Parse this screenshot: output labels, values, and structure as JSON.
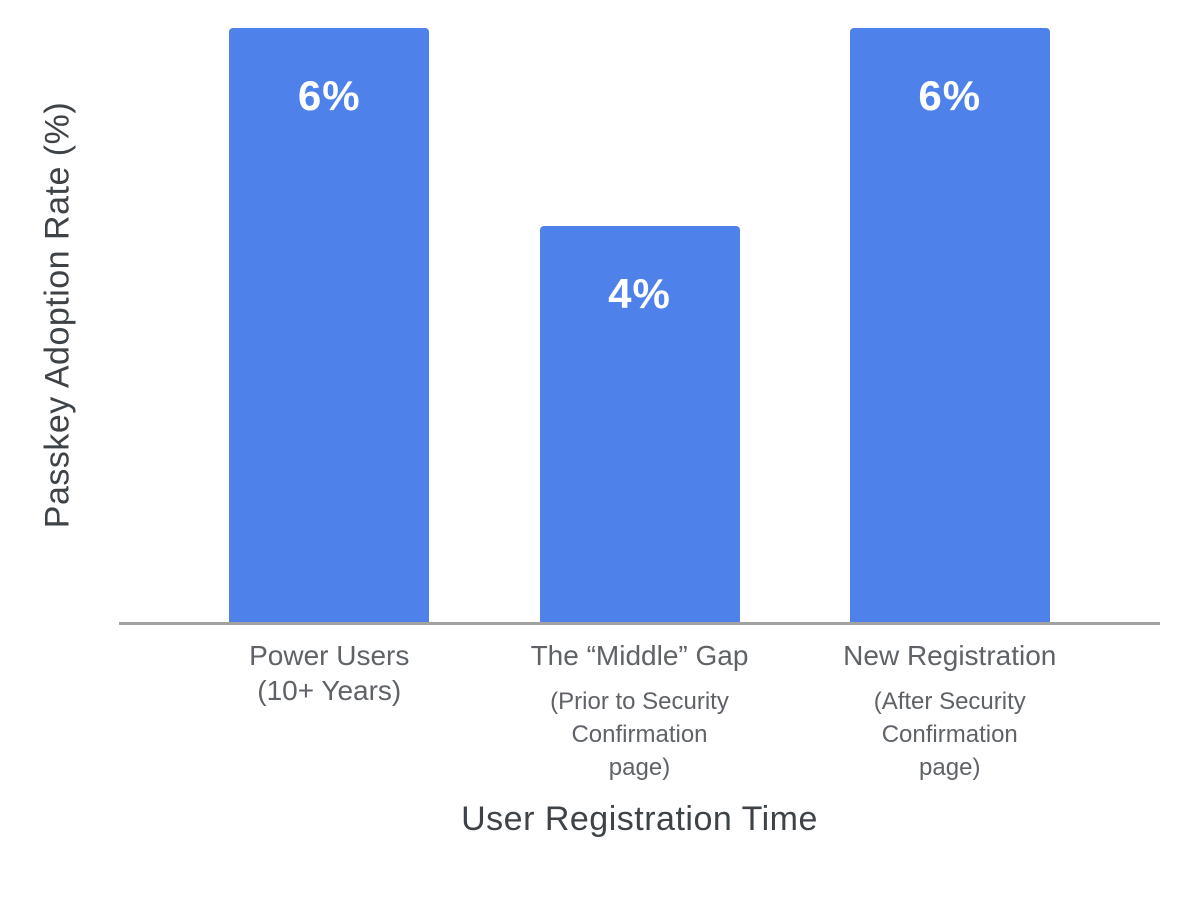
{
  "chart_data": {
    "type": "bar",
    "title": "",
    "xlabel": "User Registration Time",
    "ylabel": "Passkey Adoption Rate (%)",
    "categories": [
      "Power Users (10+ Years)",
      "The “Middle” Gap (Prior to Security Confirmation page)",
      "New Registration (After Security Confirmation page)"
    ],
    "values": [
      6,
      4,
      6
    ],
    "data_labels": [
      "6%",
      "4%",
      "6%"
    ],
    "ylim": [
      0,
      6.28
    ],
    "grid": false,
    "legend": false,
    "bar_color": "#4e81e9",
    "x_ticks": [
      {
        "label": "Power Users",
        "sublabel": "(10+ Years)",
        "sublabel_small": false
      },
      {
        "label": "The “Middle” Gap",
        "sublabel": "(Prior to Security Confirmation page)",
        "sublabel_small": true
      },
      {
        "label": "New Registration",
        "sublabel": "(After Security Confirmation page)",
        "sublabel_small": true
      }
    ]
  },
  "colors": {
    "background": "#ffffff",
    "bar": "#4e81e9",
    "bar_label_text": "#ffffff",
    "tick_label": "#5f6368",
    "axis_title": "#3e4347",
    "axis_line": "#a2a2a2"
  }
}
